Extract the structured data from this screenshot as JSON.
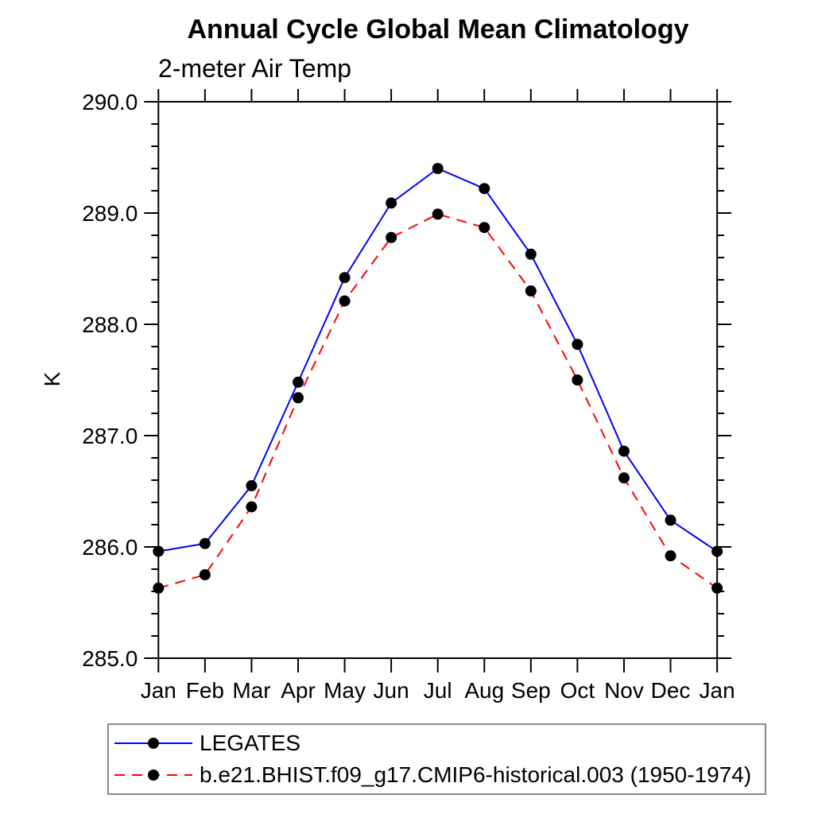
{
  "chart_data": {
    "type": "line",
    "title": "Annual Cycle Global Mean Climatology",
    "subtitle": "2-meter Air Temp",
    "ylabel": "K",
    "xlabel": "",
    "ylim": [
      285.0,
      290.0
    ],
    "ytick_major": 1.0,
    "ytick_minor": 0.2,
    "grid": false,
    "legend_position": "bottom-left",
    "marker": "filled-circle",
    "marker_color": "#000000",
    "categories": [
      "Jan",
      "Feb",
      "Mar",
      "Apr",
      "May",
      "Jun",
      "Jul",
      "Aug",
      "Sep",
      "Oct",
      "Nov",
      "Dec",
      "Jan"
    ],
    "series": [
      {
        "name": "LEGATES",
        "color": "#0000ff",
        "style": "solid",
        "values": [
          285.96,
          286.03,
          286.55,
          287.48,
          288.42,
          289.09,
          289.4,
          289.22,
          288.63,
          287.82,
          286.86,
          286.24,
          285.96
        ]
      },
      {
        "name": "b.e21.BHIST.f09_g17.CMIP6-historical.003 (1950-1974)",
        "color": "#ff0000",
        "style": "dashed",
        "values": [
          285.63,
          285.75,
          286.36,
          287.34,
          288.21,
          288.78,
          288.99,
          288.87,
          288.3,
          287.5,
          286.62,
          285.92,
          285.63
        ]
      }
    ],
    "ytick_labels": [
      "285.0",
      "286.0",
      "287.0",
      "288.0",
      "289.0",
      "290.0"
    ]
  }
}
